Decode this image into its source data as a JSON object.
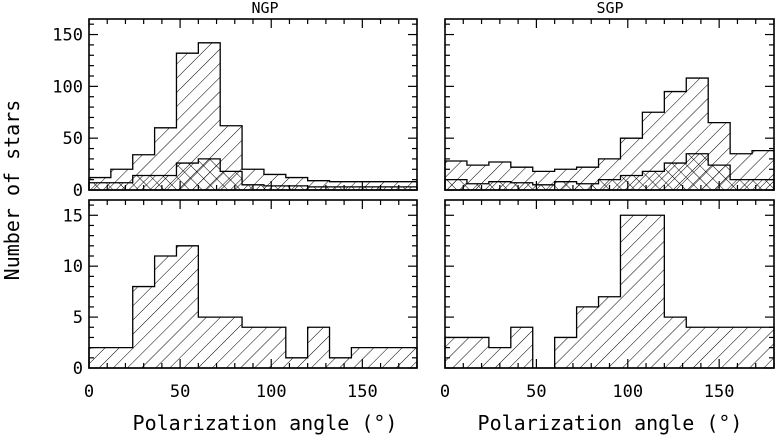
{
  "figure": {
    "ylabel": "Number of stars",
    "xlabel": "Polarization angle (°)"
  },
  "chart_data": [
    {
      "type": "bar",
      "title": "NGP",
      "xlabel": "",
      "ylabel": "Number of stars",
      "xlim": [
        0,
        180
      ],
      "ylim": [
        0,
        165
      ],
      "xticks": [
        0,
        50,
        100,
        150
      ],
      "yticks": [
        0,
        50,
        100,
        150
      ],
      "bin_edges": [
        0,
        12,
        24,
        36,
        48,
        60,
        72,
        84,
        96,
        108,
        120,
        132,
        144,
        156,
        168,
        180
      ],
      "series": [
        {
          "pattern": "hatch",
          "values": [
            12,
            20,
            34,
            60,
            132,
            142,
            62,
            20,
            15,
            12,
            9,
            8,
            8,
            8,
            8
          ]
        },
        {
          "pattern": "crosshatch",
          "values": [
            7,
            7,
            14,
            14,
            26,
            30,
            18,
            5,
            4,
            4,
            3,
            3,
            3,
            3,
            3
          ]
        }
      ]
    },
    {
      "type": "bar",
      "title": "SGP",
      "xlabel": "",
      "ylabel": "",
      "xlim": [
        0,
        180
      ],
      "ylim": [
        0,
        165
      ],
      "xticks": [
        0,
        50,
        100,
        150
      ],
      "yticks": [
        0,
        50,
        100,
        150
      ],
      "bin_edges": [
        0,
        12,
        24,
        36,
        48,
        60,
        72,
        84,
        96,
        108,
        120,
        132,
        144,
        156,
        168,
        180
      ],
      "series": [
        {
          "pattern": "hatch",
          "values": [
            28,
            24,
            27,
            22,
            18,
            20,
            22,
            30,
            50,
            75,
            95,
            108,
            65,
            35,
            38
          ]
        },
        {
          "pattern": "crosshatch",
          "values": [
            10,
            6,
            8,
            7,
            5,
            8,
            6,
            10,
            14,
            18,
            26,
            35,
            24,
            10,
            10
          ]
        }
      ]
    },
    {
      "type": "bar",
      "title": "",
      "xlabel": "Polarization angle (°)",
      "ylabel": "Number of stars",
      "xlim": [
        0,
        180
      ],
      "ylim": [
        0,
        16.5
      ],
      "xticks": [
        0,
        50,
        100,
        150
      ],
      "yticks": [
        0,
        5,
        10,
        15
      ],
      "bin_edges": [
        0,
        12,
        24,
        36,
        48,
        60,
        72,
        84,
        96,
        108,
        120,
        132,
        144,
        156,
        168,
        180
      ],
      "series": [
        {
          "pattern": "hatch",
          "values": [
            2,
            2,
            8,
            11,
            12,
            5,
            5,
            4,
            4,
            1,
            4,
            1,
            2,
            2,
            2
          ]
        }
      ]
    },
    {
      "type": "bar",
      "title": "",
      "xlabel": "Polarization angle (°)",
      "ylabel": "",
      "xlim": [
        0,
        180
      ],
      "ylim": [
        0,
        16.5
      ],
      "xticks": [
        0,
        50,
        100,
        150
      ],
      "yticks": [
        0,
        5,
        10,
        15
      ],
      "bin_edges": [
        0,
        12,
        24,
        36,
        48,
        60,
        72,
        84,
        96,
        108,
        120,
        132,
        144,
        156,
        168,
        180
      ],
      "series": [
        {
          "pattern": "hatch",
          "values": [
            3,
            3,
            2,
            4,
            0,
            3,
            6,
            7,
            15,
            15,
            5,
            4,
            4,
            4,
            4
          ]
        }
      ]
    }
  ]
}
